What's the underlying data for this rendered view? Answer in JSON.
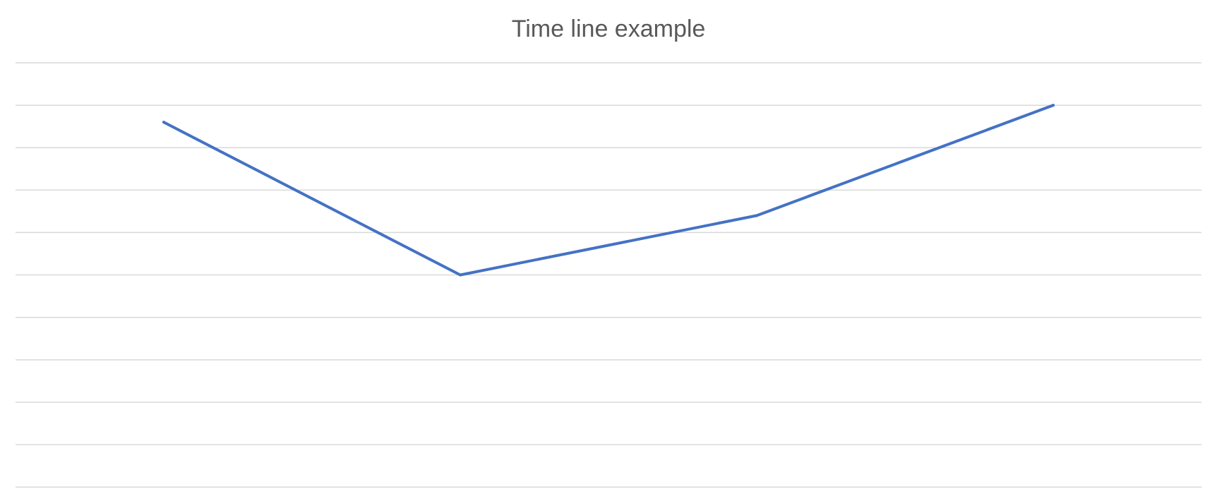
{
  "chart_data": {
    "type": "line",
    "title": "Time line example",
    "xlabel": "",
    "ylabel": "",
    "categories": [
      "",
      "",
      "",
      ""
    ],
    "x": [
      1,
      2,
      3,
      4
    ],
    "series": [
      {
        "values": [
          8.6,
          5.0,
          6.4,
          9.0
        ],
        "color": "#4472C4"
      }
    ],
    "ylim": [
      0,
      10
    ],
    "grid": true,
    "gridline_count": 11,
    "legend": "none"
  }
}
